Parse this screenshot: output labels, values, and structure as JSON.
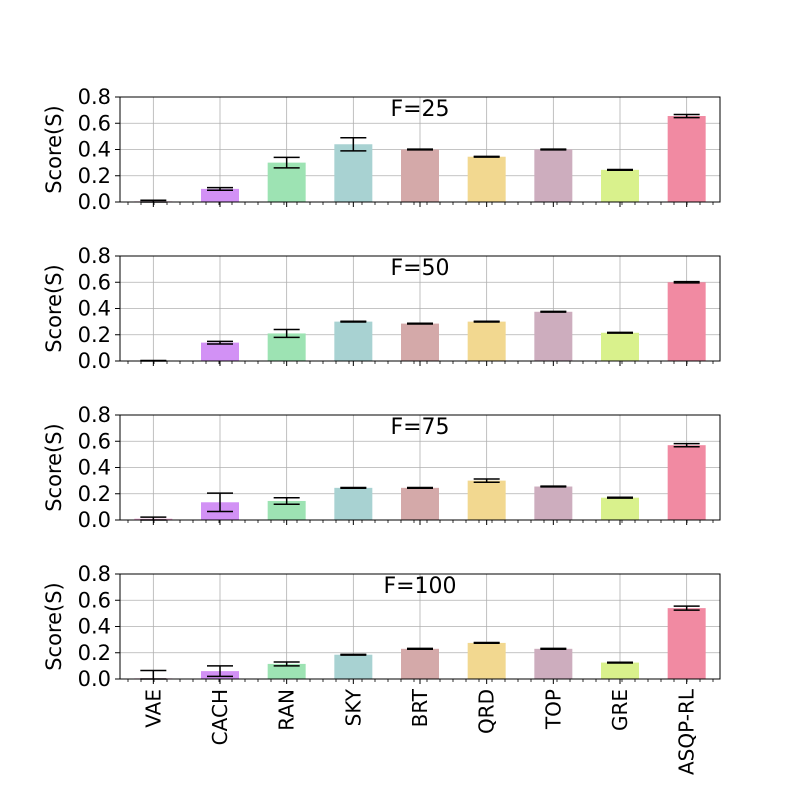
{
  "chart_data": [
    {
      "type": "bar",
      "title": "F=25",
      "xlabel": "",
      "ylabel": "Score(S)",
      "ylim": [
        0,
        0.8
      ],
      "yticks": [
        "0.0",
        "0.2",
        "0.4",
        "0.6",
        "0.8"
      ],
      "grid": true,
      "categories": [
        "VAE",
        "CACH",
        "RAN",
        "SKY",
        "BRT",
        "QRD",
        "TOP",
        "GRE",
        "ASQP-RL"
      ],
      "values": [
        0.005,
        0.1,
        0.3,
        0.44,
        0.4,
        0.345,
        0.4,
        0.245,
        0.655
      ],
      "errors": [
        0.008,
        0.01,
        0.04,
        0.05,
        0.003,
        0.003,
        0.003,
        0.003,
        0.012
      ]
    },
    {
      "type": "bar",
      "title": "F=50",
      "xlabel": "",
      "ylabel": "Score(S)",
      "ylim": [
        0,
        0.8
      ],
      "yticks": [
        "0.0",
        "0.2",
        "0.4",
        "0.6",
        "0.8"
      ],
      "grid": true,
      "categories": [
        "VAE",
        "CACH",
        "RAN",
        "SKY",
        "BRT",
        "QRD",
        "TOP",
        "GRE",
        "ASQP-RL"
      ],
      "values": [
        0.002,
        0.14,
        0.21,
        0.3,
        0.285,
        0.3,
        0.375,
        0.215,
        0.6
      ],
      "errors": [
        0.002,
        0.01,
        0.03,
        0.003,
        0.003,
        0.003,
        0.003,
        0.003,
        0.005
      ]
    },
    {
      "type": "bar",
      "title": "F=75",
      "xlabel": "",
      "ylabel": "Score(S)",
      "ylim": [
        0,
        0.8
      ],
      "yticks": [
        "0.0",
        "0.2",
        "0.4",
        "0.6",
        "0.8"
      ],
      "grid": true,
      "categories": [
        "VAE",
        "CACH",
        "RAN",
        "SKY",
        "BRT",
        "QRD",
        "TOP",
        "GRE",
        "ASQP-RL"
      ],
      "values": [
        0.01,
        0.135,
        0.145,
        0.245,
        0.245,
        0.3,
        0.255,
        0.17,
        0.57
      ],
      "errors": [
        0.012,
        0.07,
        0.025,
        0.003,
        0.003,
        0.012,
        0.003,
        0.003,
        0.012
      ]
    },
    {
      "type": "bar",
      "title": "F=100",
      "xlabel": "",
      "ylabel": "Score(S)",
      "ylim": [
        0,
        0.8
      ],
      "yticks": [
        "0.0",
        "0.2",
        "0.4",
        "0.6",
        "0.8"
      ],
      "grid": true,
      "categories": [
        "VAE",
        "CACH",
        "RAN",
        "SKY",
        "BRT",
        "QRD",
        "TOP",
        "GRE",
        "ASQP-RL"
      ],
      "values": [
        0.005,
        0.06,
        0.115,
        0.185,
        0.23,
        0.275,
        0.23,
        0.125,
        0.54
      ],
      "errors": [
        0.06,
        0.04,
        0.015,
        0.003,
        0.003,
        0.003,
        0.003,
        0.003,
        0.015
      ]
    }
  ],
  "colors": [
    "#f1a7d6",
    "#d291f5",
    "#9de3b3",
    "#a8d2d2",
    "#d4a9a9",
    "#f2d890",
    "#cdadbe",
    "#d9f18c",
    "#f18aa2"
  ]
}
